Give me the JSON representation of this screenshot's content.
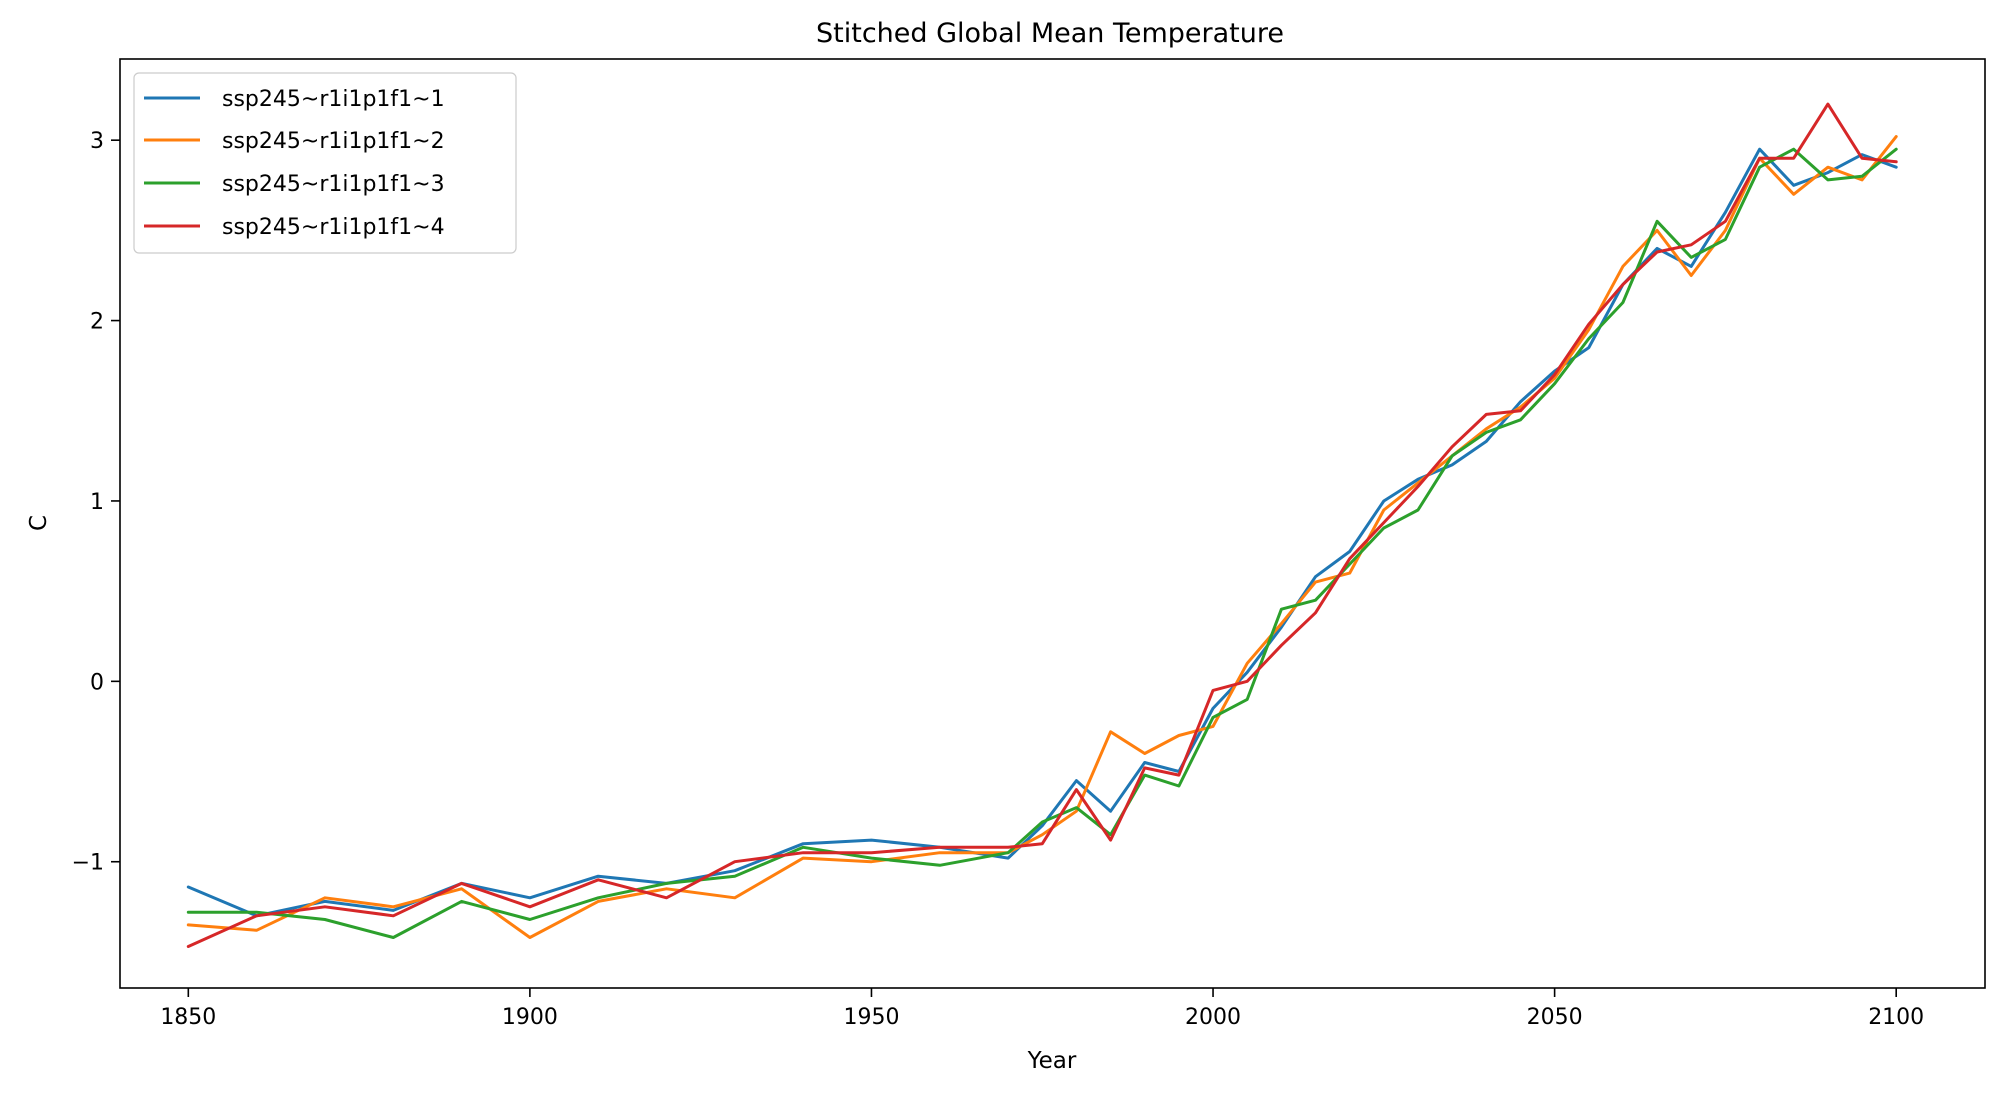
{
  "chart_data": {
    "type": "line",
    "title": "Stitched Global Mean Temperature",
    "xlabel": "Year",
    "ylabel": "C",
    "xlim": [
      1840,
      2113
    ],
    "ylim": [
      -1.7,
      3.45
    ],
    "xticks": [
      1850,
      1900,
      1950,
      2000,
      2050,
      2100
    ],
    "yticks": [
      -1,
      0,
      1,
      2,
      3
    ],
    "xtick_labels": [
      "1850",
      "1900",
      "1950",
      "2000",
      "2050",
      "2100"
    ],
    "ytick_labels": [
      "−1",
      "0",
      "1",
      "2",
      "3"
    ],
    "grid": false,
    "legend_position": "top-left",
    "x": [
      1850,
      1860,
      1870,
      1880,
      1890,
      1900,
      1910,
      1920,
      1930,
      1940,
      1950,
      1960,
      1970,
      1975,
      1980,
      1985,
      1990,
      1995,
      2000,
      2005,
      2010,
      2015,
      2020,
      2025,
      2030,
      2035,
      2040,
      2045,
      2050,
      2055,
      2060,
      2065,
      2070,
      2075,
      2080,
      2085,
      2090,
      2095,
      2100
    ],
    "series": [
      {
        "name": "ssp245~r1i1p1f1~1",
        "color": "#1f77b4",
        "values": [
          -1.14,
          -1.3,
          -1.22,
          -1.27,
          -1.12,
          -1.2,
          -1.08,
          -1.12,
          -1.05,
          -0.9,
          -0.88,
          -0.92,
          -0.98,
          -0.8,
          -0.55,
          -0.72,
          -0.45,
          -0.5,
          -0.15,
          0.05,
          0.3,
          0.58,
          0.72,
          1.0,
          1.12,
          1.2,
          1.33,
          1.55,
          1.72,
          1.85,
          2.2,
          2.4,
          2.3,
          2.6,
          2.95,
          2.75,
          2.82,
          2.92,
          2.85
        ]
      },
      {
        "name": "ssp245~r1i1p1f1~2",
        "color": "#ff7f0e",
        "values": [
          -1.35,
          -1.38,
          -1.2,
          -1.25,
          -1.15,
          -1.42,
          -1.22,
          -1.15,
          -1.2,
          -0.98,
          -1.0,
          -0.95,
          -0.95,
          -0.85,
          -0.72,
          -0.28,
          -0.4,
          -0.3,
          -0.25,
          0.1,
          0.32,
          0.55,
          0.6,
          0.95,
          1.1,
          1.25,
          1.4,
          1.52,
          1.68,
          1.95,
          2.3,
          2.5,
          2.25,
          2.5,
          2.9,
          2.7,
          2.85,
          2.78,
          3.02
        ]
      },
      {
        "name": "ssp245~r1i1p1f1~3",
        "color": "#2ca02c",
        "values": [
          -1.28,
          -1.28,
          -1.32,
          -1.42,
          -1.22,
          -1.32,
          -1.2,
          -1.12,
          -1.08,
          -0.92,
          -0.98,
          -1.02,
          -0.95,
          -0.78,
          -0.7,
          -0.85,
          -0.52,
          -0.58,
          -0.2,
          -0.1,
          0.4,
          0.45,
          0.65,
          0.85,
          0.95,
          1.25,
          1.38,
          1.45,
          1.65,
          1.9,
          2.1,
          2.55,
          2.35,
          2.45,
          2.85,
          2.95,
          2.78,
          2.8,
          2.95
        ]
      },
      {
        "name": "ssp245~r1i1p1f1~4",
        "color": "#d62728",
        "values": [
          -1.47,
          -1.3,
          -1.25,
          -1.3,
          -1.12,
          -1.25,
          -1.1,
          -1.2,
          -1.0,
          -0.95,
          -0.95,
          -0.92,
          -0.92,
          -0.9,
          -0.6,
          -0.88,
          -0.48,
          -0.52,
          -0.05,
          0.0,
          0.2,
          0.38,
          0.68,
          0.88,
          1.08,
          1.3,
          1.48,
          1.5,
          1.7,
          1.98,
          2.2,
          2.38,
          2.42,
          2.55,
          2.9,
          2.9,
          3.2,
          2.9,
          2.88
        ]
      }
    ]
  }
}
